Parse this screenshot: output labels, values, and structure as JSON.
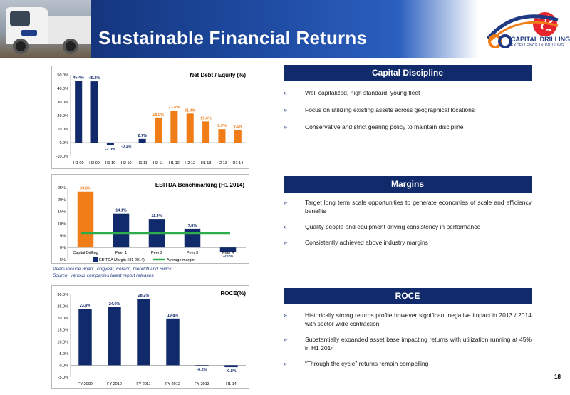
{
  "page": {
    "title": "Sustainable Financial Returns",
    "page_number": "18"
  },
  "brand": {
    "name": "CAPITAL DRILLING",
    "tagline": "EXCELLENCE IN DRILLING",
    "primary_color": "#112a6b",
    "accent_color": "#f07d18"
  },
  "colors": {
    "navy": "#112a6b",
    "orange": "#f07d18",
    "green": "#2eac4b"
  },
  "sections": {
    "capital_discipline": {
      "title": "Capital Discipline",
      "bullets": [
        "Well capitalized, high standard, young fleet",
        "Focus on utilizing existing assets across geographical locations",
        "Conservative and strict gearing policy to maintain discipline"
      ]
    },
    "margins": {
      "title": "Margins",
      "bullets": [
        "Target long term scale opportunities to generate economies of scale and efficiency benefits",
        "Quality people and equipment driving consistency in performance",
        "Consistently achieved above industry margins"
      ]
    },
    "roce": {
      "title": "ROCE",
      "bullets": [
        "Historically strong returns profile however significant negative impact in 2013 / 2014 with sector wide contraction",
        "Substantially expanded asset base impacting returns with utilization running at 45% in H1 2014",
        "“Through the cycle” returns remain compelling"
      ]
    }
  },
  "bullet_marker": "»",
  "notes": {
    "peers": "Peers include Boart Longyear, Foraco, Geodrill and Swick",
    "source": "Source: Various companies latest report releases"
  },
  "chart_data": [
    {
      "type": "bar",
      "title": "Net Debt / Equity (%)",
      "categories": [
        "H1 09",
        "H2 09",
        "H1 10",
        "H2 10",
        "H1 11",
        "H2 11",
        "H1 12",
        "H2 12",
        "H1 13",
        "H2 13",
        "H1 14"
      ],
      "values": [
        45.4,
        45.2,
        -2.0,
        -0.1,
        2.7,
        18.5,
        23.6,
        21.4,
        15.6,
        9.9,
        9.5
      ],
      "labels": [
        "45.4%",
        "45.2%",
        "-2.0%",
        "-0.1%",
        "2.7%",
        "18.5%",
        "23.6%",
        "21.4%",
        "15.6%",
        "9.9%",
        "9.5%"
      ],
      "colors": [
        "#112a6b",
        "#112a6b",
        "#112a6b",
        "#112a6b",
        "#112a6b",
        "#f07d18",
        "#f07d18",
        "#f07d18",
        "#f07d18",
        "#f07d18",
        "#f07d18"
      ],
      "label_colors": [
        "#112a6b",
        "#112a6b",
        "#112a6b",
        "#112a6b",
        "#112a6b",
        "#f07d18",
        "#f07d18",
        "#f07d18",
        "#f07d18",
        "#f07d18",
        "#f07d18"
      ],
      "ylim": [
        -10,
        50
      ],
      "yticks": [
        -10,
        0,
        10,
        20,
        30,
        40,
        50
      ],
      "ytick_labels": [
        "-10.0%",
        "0.0%",
        "10.0%",
        "20.0%",
        "30.0%",
        "40.0%",
        "50.0%"
      ],
      "grid": false
    },
    {
      "type": "bar",
      "title": "EBITDA Benchmarking (H1 2014)",
      "categories": [
        "Capital Drilling",
        "Peer 1",
        "Peer 2",
        "Peer 3",
        "Peer 4"
      ],
      "values": [
        23.3,
        14.1,
        11.9,
        7.8,
        -2.0
      ],
      "labels": [
        "23.3%",
        "14.1%",
        "11.9%",
        "7.8%",
        "-2.0%"
      ],
      "colors": [
        "#f07d18",
        "#112a6b",
        "#112a6b",
        "#112a6b",
        "#112a6b"
      ],
      "label_colors": [
        "#f07d18",
        "#112a6b",
        "#112a6b",
        "#112a6b",
        "#112a6b"
      ],
      "average_margin": 6.0,
      "ylim": [
        -5,
        25
      ],
      "yticks": [
        -5,
        0,
        5,
        10,
        15,
        20,
        25
      ],
      "ytick_labels": [
        "-5%",
        "0%",
        "5%",
        "10%",
        "15%",
        "20%",
        "25%"
      ],
      "series": [
        {
          "name": "EBITDA Margin (H1 2014)",
          "color": "#112a6b"
        },
        {
          "name": "Average margin",
          "color": "#2eac4b"
        }
      ],
      "legend": "bottom",
      "grid": false
    },
    {
      "type": "bar",
      "title": "ROCE(%)",
      "categories": [
        "FY 2009",
        "FY 2010",
        "FY 2011",
        "FY 2012",
        "FY 2013",
        "H1 14"
      ],
      "values": [
        23.9,
        24.6,
        28.2,
        19.8,
        -0.2,
        -0.8
      ],
      "labels": [
        "23.9%",
        "24.6%",
        "28.2%",
        "19.8%",
        "-0.2%",
        "-0.8%"
      ],
      "colors": [
        "#112a6b",
        "#112a6b",
        "#112a6b",
        "#112a6b",
        "#112a6b",
        "#112a6b"
      ],
      "label_colors": [
        "#112a6b",
        "#112a6b",
        "#112a6b",
        "#112a6b",
        "#112a6b",
        "#112a6b"
      ],
      "ylim": [
        -5,
        30
      ],
      "yticks": [
        -5,
        0,
        5,
        10,
        15,
        20,
        25,
        30
      ],
      "ytick_labels": [
        "-5.0%",
        "0.0%",
        "5.0%",
        "10.0%",
        "15.0%",
        "20.0%",
        "25.0%",
        "30.0%"
      ],
      "grid": false
    }
  ]
}
